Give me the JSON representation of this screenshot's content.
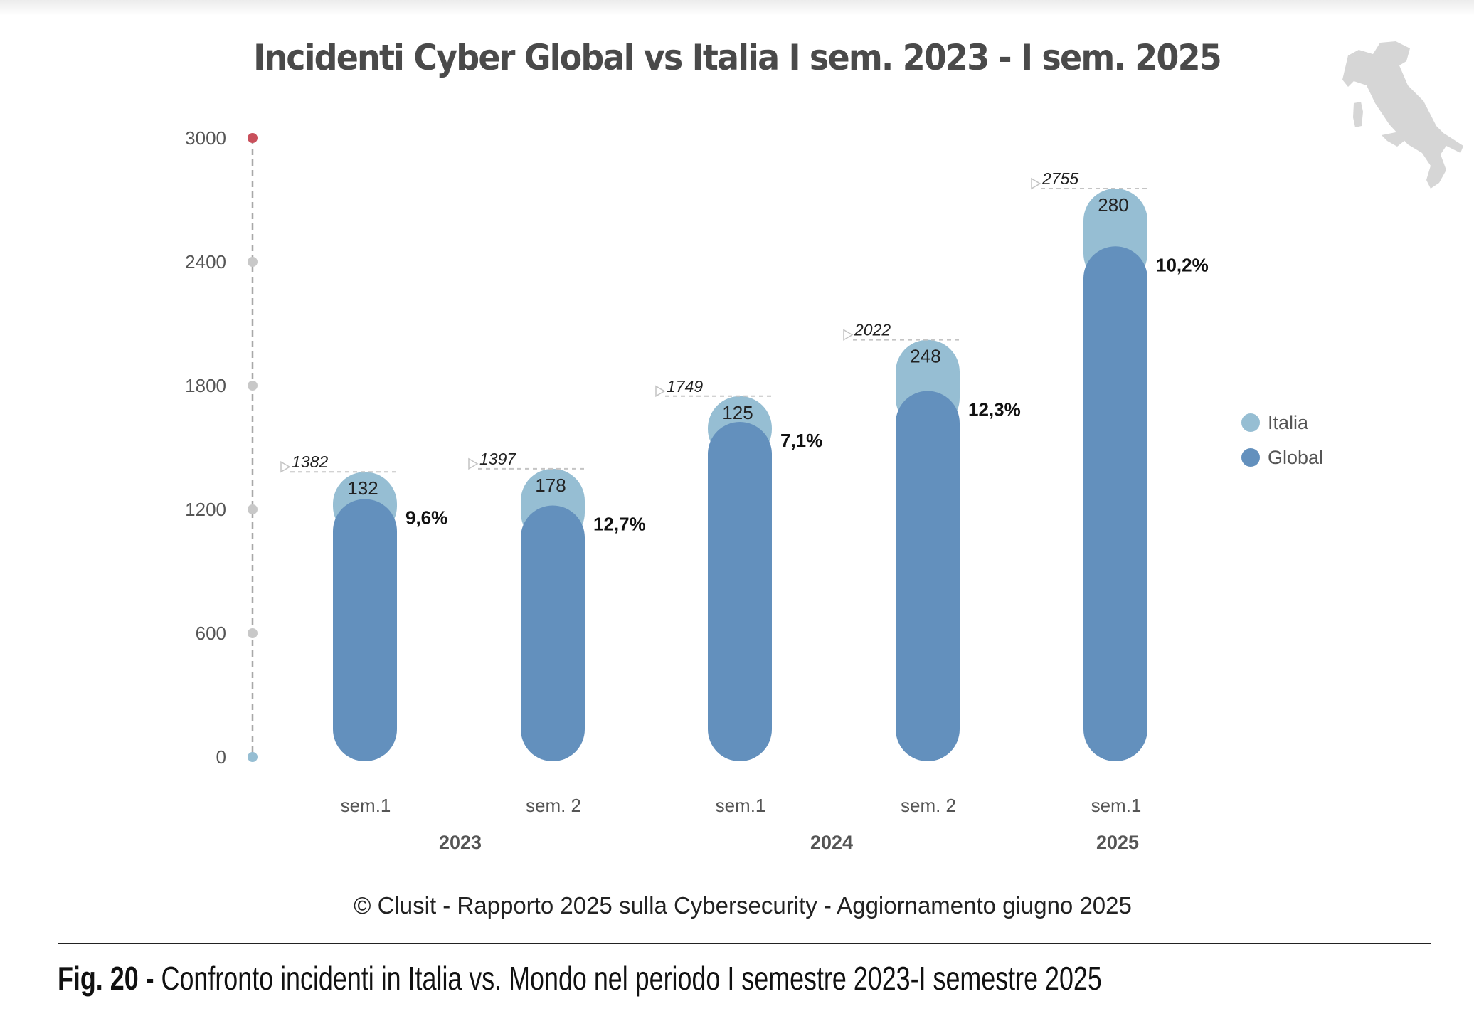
{
  "chart_data": {
    "type": "bar",
    "stacked": true,
    "title": "Incidenti Cyber Global vs Italia I sem. 2023 - I sem. 2025",
    "categories": [
      "sem.1",
      "sem. 2",
      "sem.1",
      "sem. 2",
      "sem.1"
    ],
    "groups": [
      {
        "label": "2023",
        "span": [
          0,
          1
        ]
      },
      {
        "label": "2024",
        "span": [
          2,
          3
        ]
      },
      {
        "label": "2025",
        "span": [
          4,
          4
        ]
      }
    ],
    "totals": [
      1382,
      1397,
      1749,
      2022,
      2755
    ],
    "series": [
      {
        "name": "Global",
        "values": [
          1250,
          1219,
          1624,
          1774,
          2475
        ],
        "color": "#6390bd"
      },
      {
        "name": "Italia",
        "values": [
          132,
          178,
          125,
          248,
          280
        ],
        "color": "#96bed3"
      }
    ],
    "italia_share_labels": [
      "9,6%",
      "12,7%",
      "7,1%",
      "12,3%",
      "10,2%"
    ],
    "yticks": [
      0,
      600,
      1200,
      1800,
      2400,
      3000
    ],
    "ylim": [
      0,
      3000
    ],
    "grid": false,
    "legend": "right"
  },
  "legend": [
    {
      "label": "Italia",
      "color": "#96bed3"
    },
    {
      "label": "Global",
      "color": "#6390bd"
    }
  ],
  "decoration": {
    "icon": "italy-map-icon",
    "color": "#d6d6d6"
  },
  "credit": "© Clusit - Rapporto 2025 sulla Cybersecurity - Aggiornamento giugno 2025",
  "caption": {
    "label": "Fig. 20 -",
    "text": " Confronto incidenti in Italia vs. Mondo nel periodo I semestre 2023-I semestre 2025"
  }
}
